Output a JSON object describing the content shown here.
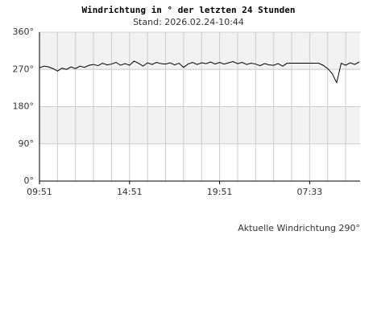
{
  "chart_data": {
    "type": "line",
    "title": "Windrichtung in ° der letzten 24 Stunden",
    "subtitle": "Stand: 2026.02.24-10:44",
    "annotation": "Aktuelle Windrichtung 290°",
    "x": [
      0,
      0.25,
      0.5,
      0.75,
      1,
      1.25,
      1.5,
      1.75,
      2,
      2.25,
      2.5,
      2.75,
      3,
      3.25,
      3.5,
      3.75,
      4,
      4.25,
      4.5,
      4.75,
      5,
      5.25,
      5.5,
      5.75,
      6,
      6.25,
      6.5,
      6.75,
      7,
      7.25,
      7.5,
      7.75,
      8,
      8.25,
      8.5,
      8.75,
      9,
      9.25,
      9.5,
      9.75,
      10,
      10.25,
      10.5,
      10.75,
      11,
      11.25,
      11.5,
      11.75,
      12,
      12.25,
      12.5,
      12.75,
      13,
      13.25,
      13.5,
      13.75,
      14,
      14.25,
      14.5,
      14.75,
      15,
      15.25,
      15.5,
      15.75,
      16,
      16.25,
      16.5,
      16.75,
      17,
      17.25,
      17.5,
      17.75
    ],
    "series": [
      {
        "color": "#000000",
        "values": [
          274,
          278,
          276,
          272,
          266,
          273,
          270,
          276,
          272,
          278,
          275,
          280,
          282,
          279,
          285,
          281,
          283,
          287,
          280,
          284,
          280,
          290,
          285,
          278,
          286,
          282,
          287,
          284,
          283,
          286,
          281,
          285,
          275,
          283,
          287,
          282,
          286,
          284,
          288,
          283,
          287,
          283,
          286,
          289,
          284,
          287,
          282,
          285,
          283,
          279,
          284,
          281,
          280,
          284,
          278,
          285,
          285,
          285,
          285,
          285,
          285,
          285,
          285,
          280,
          272,
          260,
          238,
          285,
          280,
          286,
          282,
          288
        ]
      }
    ],
    "xlim": [
      0,
      17.8
    ],
    "xticks": [
      {
        "value": 0,
        "label": "09:51"
      },
      {
        "value": 5,
        "label": "14:51"
      },
      {
        "value": 10,
        "label": "19:51"
      },
      {
        "value": 15,
        "label": "07:33"
      }
    ],
    "xgrid": [
      1,
      2,
      3,
      4,
      5,
      6,
      7,
      8,
      9,
      10,
      11,
      12,
      13,
      14,
      15,
      16,
      17
    ],
    "ylim": [
      0,
      360
    ],
    "yticks": [
      {
        "value": 0,
        "label": "0°"
      },
      {
        "value": 90,
        "label": "90°"
      },
      {
        "value": 180,
        "label": "180°"
      },
      {
        "value": 270,
        "label": "270°"
      },
      {
        "value": 360,
        "label": "360°"
      }
    ],
    "bands": [
      [
        90,
        180
      ],
      [
        270,
        360
      ]
    ],
    "band_color": "#f2f2f2",
    "grid_color": "#cccccc"
  }
}
